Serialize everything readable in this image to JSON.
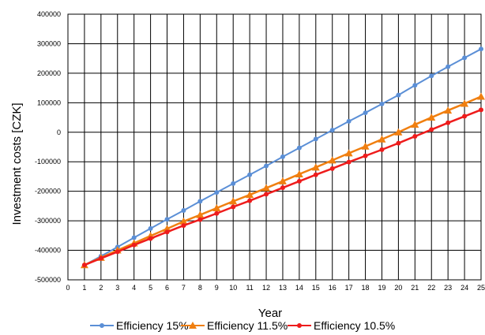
{
  "chart_data": {
    "type": "line",
    "title": "",
    "xlabel": "Year",
    "ylabel": "Investment costs [CZK]",
    "xlim": [
      0,
      25
    ],
    "ylim": [
      -500000,
      400000
    ],
    "x_ticks": [
      0,
      1,
      2,
      3,
      4,
      5,
      6,
      7,
      8,
      9,
      10,
      11,
      12,
      13,
      14,
      15,
      16,
      17,
      18,
      19,
      20,
      21,
      22,
      23,
      24,
      25
    ],
    "y_ticks": [
      -500000,
      -400000,
      -300000,
      -200000,
      -100000,
      0,
      100000,
      200000,
      300000,
      400000
    ],
    "grid": true,
    "legend_position": "bottom",
    "x": [
      1,
      2,
      3,
      4,
      5,
      6,
      7,
      8,
      9,
      10,
      11,
      12,
      13,
      14,
      15,
      16,
      17,
      18,
      19,
      20,
      21,
      22,
      23,
      24,
      25
    ],
    "series": [
      {
        "name": "Efficiency 15%",
        "color": "#5b8fd6",
        "marker": "circle",
        "values": [
          -450000,
          -420000,
          -389000,
          -357000,
          -326000,
          -295000,
          -265000,
          -234000,
          -204000,
          -174000,
          -144000,
          -114000,
          -83000,
          -53000,
          -23000,
          7000,
          37000,
          66000,
          96000,
          126000,
          159000,
          191000,
          222000,
          252000,
          282000
        ]
      },
      {
        "name": "Efficiency 11.5%",
        "color": "#f07f10",
        "marker": "triangle",
        "values": [
          -450000,
          -425000,
          -400000,
          -376000,
          -351000,
          -327000,
          -302000,
          -280000,
          -257000,
          -234000,
          -212000,
          -189000,
          -166000,
          -142000,
          -119000,
          -95000,
          -71000,
          -48000,
          -24000,
          0,
          26000,
          50000,
          74000,
          97000,
          121000
        ]
      },
      {
        "name": "Efficiency 10.5%",
        "color": "#ee1c1c",
        "marker": "circle",
        "values": [
          -450000,
          -427000,
          -405000,
          -382000,
          -360000,
          -338000,
          -316000,
          -296000,
          -275000,
          -253000,
          -232000,
          -210000,
          -188000,
          -166000,
          -144000,
          -123000,
          -101000,
          -80000,
          -59000,
          -37000,
          -14000,
          9000,
          32000,
          54000,
          76000
        ]
      }
    ]
  }
}
